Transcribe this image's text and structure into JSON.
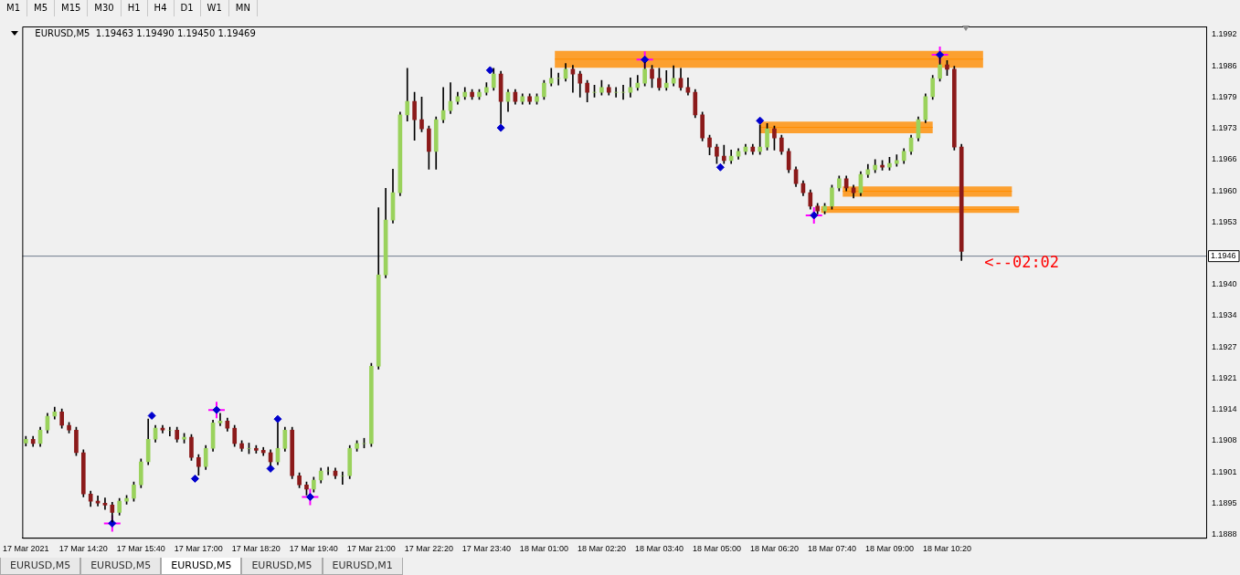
{
  "chart_data": {
    "type": "candlestick",
    "title": "EURUSD,M5  1.19463 1.19490 1.19450 1.19469",
    "colors": [
      "#9ad25c",
      "#8b1a1a",
      "#9ad25c",
      "#9ad25c",
      "#9ad25c",
      "#8b1a1a",
      "#8b1a1a",
      "#8b1a1a",
      "#8b1a1a",
      "#8b1a1a",
      "#8b1a1a",
      "#8b1a1a",
      "#8b1a1a",
      "#9ad25c",
      "#9ad25c",
      "#9ad25c",
      "#9ad25c",
      "#9ad25c",
      "#9ad25c",
      "#8b1a1a",
      "#9ad25c",
      "#8b1a1a",
      "#9ad25c",
      "#8b1a1a",
      "#8b1a1a",
      "#9ad25c",
      "#9ad25c",
      "#9ad25c",
      "#8b1a1a",
      "#8b1a1a",
      "#8b1a1a",
      "#9ad25c",
      "#8b1a1a",
      "#8b1a1a",
      "#8b1a1a",
      "#9ad25c",
      "#9ad25c",
      "#8b1a1a",
      "#8b1a1a",
      "#8b1a1a",
      "#9ad25c",
      "#9ad25c",
      "#9ad25c",
      "#8b1a1a",
      "#9ad25c",
      "#9ad25c",
      "#9ad25c",
      "#9ad25c",
      "#9ad25c",
      "#9ad25c",
      "#9ad25c",
      "#9ad25c",
      "#9ad25c",
      "#9ad25c",
      "#8b1a1a",
      "#8b1a1a",
      "#8b1a1a",
      "#9ad25c",
      "#9ad25c",
      "#9ad25c",
      "#9ad25c",
      "#9ad25c",
      "#8b1a1a",
      "#9ad25c",
      "#9ad25c",
      "#9ad25c",
      "#8b1a1a",
      "#9ad25c",
      "#8b1a1a",
      "#9ad25c",
      "#8b1a1a",
      "#9ad25c",
      "#9ad25c",
      "#9ad25c",
      "#9ad25c",
      "#9ad25c",
      "#8b1a1a",
      "#8b1a1a",
      "#8b1a1a",
      "#9ad25c",
      "#9ad25c",
      "#8b1a1a",
      "#9ad25c",
      "#9ad25c",
      "#9ad25c",
      "#9ad25c",
      "#9ad25c",
      "#8b1a1a",
      "#8b1a1a",
      "#9ad25c",
      "#9ad25c",
      "#8b1a1a",
      "#8b1a1a",
      "#8b1a1a",
      "#8b1a1a",
      "#8b1a1a",
      "#8b1a1a",
      "#8b1a1a",
      "#9ad25c",
      "#9ad25c",
      "#9ad25c",
      "#8b1a1a",
      "#9ad25c",
      "#9ad25c",
      "#8b1a1a",
      "#8b1a1a",
      "#8b1a1a",
      "#8b1a1a",
      "#8b1a1a",
      "#8b1a1a",
      "#8b1a1a",
      "#9ad25c",
      "#9ad25c",
      "#9ad25c",
      "#8b1a1a",
      "#8b1a1a",
      "#9ad25c",
      "#9ad25c",
      "#9ad25c",
      "#8b1a1a",
      "#9ad25c",
      "#9ad25c",
      "#9ad25c",
      "#9ad25c",
      "#9ad25c",
      "#9ad25c",
      "#9ad25c",
      "#9ad25c",
      "#8b1a1a",
      "#8b1a1a",
      "#8b1a1a"
    ],
    "x": [
      "2021-03-17T13:00",
      "2021-03-17T13:10",
      "2021-03-17T13:20",
      "2021-03-17T13:30",
      "2021-03-17T13:40",
      "2021-03-17T13:50",
      "2021-03-17T14:00",
      "2021-03-17T14:10",
      "2021-03-17T14:20",
      "2021-03-17T14:30",
      "2021-03-17T14:40",
      "2021-03-17T14:50",
      "2021-03-17T15:00",
      "2021-03-17T15:10",
      "2021-03-17T15:20",
      "2021-03-17T15:30",
      "2021-03-17T15:40",
      "2021-03-17T15:50",
      "2021-03-17T16:00",
      "2021-03-17T16:10",
      "2021-03-17T16:20",
      "2021-03-17T16:30",
      "2021-03-17T16:40",
      "2021-03-17T16:50",
      "2021-03-17T17:00",
      "2021-03-17T17:10",
      "2021-03-17T17:20",
      "2021-03-17T17:30",
      "2021-03-17T17:40",
      "2021-03-17T17:50",
      "2021-03-17T18:00",
      "2021-03-17T18:10",
      "2021-03-17T18:20",
      "2021-03-17T18:30",
      "2021-03-17T18:40",
      "2021-03-17T18:50",
      "2021-03-17T19:00",
      "2021-03-17T19:10",
      "2021-03-17T19:20",
      "2021-03-17T19:30",
      "2021-03-17T19:40",
      "2021-03-17T19:50",
      "2021-03-17T20:00",
      "2021-03-17T20:10",
      "2021-03-17T20:20",
      "2021-03-17T20:30",
      "2021-03-17T20:40",
      "2021-03-17T20:50",
      "2021-03-17T21:00",
      "2021-03-17T21:10",
      "2021-03-17T21:20",
      "2021-03-17T21:30",
      "2021-03-17T21:40",
      "2021-03-17T21:50",
      "2021-03-17T22:00",
      "2021-03-17T22:10",
      "2021-03-17T22:20",
      "2021-03-17T22:30",
      "2021-03-17T22:40",
      "2021-03-17T22:50",
      "2021-03-17T23:00",
      "2021-03-17T23:10",
      "2021-03-17T23:20",
      "2021-03-17T23:30",
      "2021-03-17T23:40",
      "2021-03-17T23:50",
      "2021-03-18T00:00",
      "2021-03-18T00:10",
      "2021-03-18T00:20",
      "2021-03-18T00:30",
      "2021-03-18T00:40",
      "2021-03-18T00:50",
      "2021-03-18T01:00",
      "2021-03-18T01:10",
      "2021-03-18T01:20",
      "2021-03-18T01:30",
      "2021-03-18T01:40",
      "2021-03-18T01:50",
      "2021-03-18T02:00",
      "2021-03-18T02:10",
      "2021-03-18T02:20",
      "2021-03-18T02:30",
      "2021-03-18T02:40",
      "2021-03-18T02:50",
      "2021-03-18T03:00",
      "2021-03-18T03:10",
      "2021-03-18T03:20",
      "2021-03-18T03:30",
      "2021-03-18T03:40",
      "2021-03-18T03:50",
      "2021-03-18T04:00",
      "2021-03-18T04:10",
      "2021-03-18T04:20",
      "2021-03-18T04:30",
      "2021-03-18T04:40",
      "2021-03-18T04:50",
      "2021-03-18T05:00",
      "2021-03-18T05:10",
      "2021-03-18T05:20",
      "2021-03-18T05:30",
      "2021-03-18T05:40",
      "2021-03-18T05:50",
      "2021-03-18T06:00",
      "2021-03-18T06:10",
      "2021-03-18T06:20",
      "2021-03-18T06:30",
      "2021-03-18T06:40",
      "2021-03-18T06:50",
      "2021-03-18T07:00",
      "2021-03-18T07:10",
      "2021-03-18T07:20",
      "2021-03-18T07:30",
      "2021-03-18T07:40",
      "2021-03-18T07:50",
      "2021-03-18T08:00",
      "2021-03-18T08:10",
      "2021-03-18T08:20",
      "2021-03-18T08:30",
      "2021-03-18T08:40",
      "2021-03-18T08:50",
      "2021-03-18T09:00",
      "2021-03-18T09:10",
      "2021-03-18T09:20",
      "2021-03-18T09:30",
      "2021-03-18T09:40",
      "2021-03-18T09:50",
      "2021-03-18T10:00",
      "2021-03-18T10:10",
      "2021-03-18T10:20",
      "2021-03-18T10:30",
      "2021-03-18T10:40"
    ],
    "ohlc": [
      [
        1.1907,
        1.19084,
        1.19064,
        1.19078
      ],
      [
        1.19078,
        1.19084,
        1.19063,
        1.19069
      ],
      [
        1.19069,
        1.19103,
        1.19063,
        1.19097
      ],
      [
        1.19097,
        1.19132,
        1.19091,
        1.19126
      ],
      [
        1.19126,
        1.19145,
        1.1912,
        1.19135
      ],
      [
        1.19135,
        1.19141,
        1.19101,
        1.19107
      ],
      [
        1.19107,
        1.19113,
        1.19091,
        1.19097
      ],
      [
        1.19097,
        1.19103,
        1.19044,
        1.1905
      ],
      [
        1.1905,
        1.19056,
        1.18958,
        1.18964
      ],
      [
        1.18964,
        1.1897,
        1.18938,
        1.18949
      ],
      [
        1.18949,
        1.1896,
        1.18939,
        1.18945
      ],
      [
        1.18945,
        1.18956,
        1.18932,
        1.18941
      ],
      [
        1.18941,
        1.18947,
        1.18906,
        1.18926
      ],
      [
        1.18926,
        1.18955,
        1.1892,
        1.18949
      ],
      [
        1.18949,
        1.18961,
        1.18943,
        1.18955
      ],
      [
        1.18955,
        1.18989,
        1.18949,
        1.18983
      ],
      [
        1.18983,
        1.19037,
        1.18977,
        1.19031
      ],
      [
        1.19031,
        1.1912,
        1.19025,
        1.19078
      ],
      [
        1.19078,
        1.19107,
        1.19072,
        1.19101
      ],
      [
        1.19101,
        1.19107,
        1.19091,
        1.19097
      ],
      [
        1.19097,
        1.19103,
        1.19085,
        1.19097
      ],
      [
        1.19097,
        1.19103,
        1.19072,
        1.19078
      ],
      [
        1.19078,
        1.1909,
        1.1907,
        1.19082
      ],
      [
        1.19082,
        1.19088,
        1.19034,
        1.1904
      ],
      [
        1.1904,
        1.19046,
        1.19003,
        1.19021
      ],
      [
        1.19021,
        1.19065,
        1.19015,
        1.19059
      ],
      [
        1.19059,
        1.19118,
        1.19053,
        1.19112
      ],
      [
        1.19112,
        1.19132,
        1.19106,
        1.19116
      ],
      [
        1.19116,
        1.19122,
        1.19095,
        1.19101
      ],
      [
        1.19101,
        1.19107,
        1.19063,
        1.19069
      ],
      [
        1.19069,
        1.19075,
        1.19053,
        1.19059
      ],
      [
        1.19059,
        1.1907,
        1.19048,
        1.19059
      ],
      [
        1.19059,
        1.19065,
        1.19049,
        1.19055
      ],
      [
        1.19055,
        1.19061,
        1.19044,
        1.1905
      ],
      [
        1.1905,
        1.19056,
        1.19023,
        1.19031
      ],
      [
        1.19031,
        1.19112,
        1.19025,
        1.19059
      ],
      [
        1.19059,
        1.19103,
        1.19053,
        1.19097
      ],
      [
        1.19097,
        1.19103,
        1.18996,
        1.19002
      ],
      [
        1.19002,
        1.19008,
        1.18977,
        1.18983
      ],
      [
        1.18983,
        1.18989,
        1.18962,
        1.18974
      ],
      [
        1.18974,
        1.18999,
        1.18968,
        1.18993
      ],
      [
        1.18993,
        1.19018,
        1.18987,
        1.19012
      ],
      [
        1.19012,
        1.1902,
        1.19004,
        1.19012
      ],
      [
        1.19012,
        1.19018,
        1.18996,
        1.19002
      ],
      [
        1.19002,
        1.1901,
        1.18984,
        1.19002
      ],
      [
        1.19002,
        1.19065,
        1.18996,
        1.19059
      ],
      [
        1.19059,
        1.19075,
        1.19053,
        1.19069
      ],
      [
        1.19069,
        1.1908,
        1.1906,
        1.19069
      ],
      [
        1.19069,
        1.19236,
        1.19063,
        1.1923
      ],
      [
        1.1923,
        1.1956,
        1.19224,
        1.1942
      ],
      [
        1.1942,
        1.196,
        1.19414,
        1.19534
      ],
      [
        1.19534,
        1.1964,
        1.19528,
        1.19591
      ],
      [
        1.19591,
        1.19759,
        1.19585,
        1.19753
      ],
      [
        1.19753,
        1.1985,
        1.1974,
        1.19781
      ],
      [
        1.19781,
        1.198,
        1.197,
        1.19743
      ],
      [
        1.19743,
        1.1979,
        1.19718,
        1.19724
      ],
      [
        1.19724,
        1.1973,
        1.1964,
        1.19677
      ],
      [
        1.19677,
        1.19749,
        1.1964,
        1.19743
      ],
      [
        1.19743,
        1.1981,
        1.19737,
        1.19762
      ],
      [
        1.19762,
        1.1982,
        1.19756,
        1.19781
      ],
      [
        1.19781,
        1.198,
        1.19775,
        1.19791
      ],
      [
        1.19791,
        1.1981,
        1.19785,
        1.198
      ],
      [
        1.198,
        1.19806,
        1.19785,
        1.19791
      ],
      [
        1.19791,
        1.19806,
        1.19785,
        1.198
      ],
      [
        1.198,
        1.1982,
        1.19794,
        1.1981
      ],
      [
        1.1981,
        1.1985,
        1.19804,
        1.19838
      ],
      [
        1.19838,
        1.19844,
        1.19735,
        1.19781
      ],
      [
        1.19781,
        1.19806,
        1.1976,
        1.198
      ],
      [
        1.198,
        1.19806,
        1.19775,
        1.19781
      ],
      [
        1.19781,
        1.19797,
        1.19775,
        1.19791
      ],
      [
        1.19791,
        1.19797,
        1.19775,
        1.19781
      ],
      [
        1.19781,
        1.19797,
        1.19775,
        1.19791
      ],
      [
        1.19791,
        1.19825,
        1.19785,
        1.19819
      ],
      [
        1.19819,
        1.1985,
        1.19813,
        1.19829
      ],
      [
        1.19829,
        1.1984,
        1.19815,
        1.19829
      ],
      [
        1.19829,
        1.1986,
        1.19823,
        1.19848
      ],
      [
        1.19848,
        1.19856,
        1.198,
        1.19838
      ],
      [
        1.19838,
        1.19844,
        1.1979,
        1.19819
      ],
      [
        1.19819,
        1.19825,
        1.1978,
        1.198
      ],
      [
        1.198,
        1.19815,
        1.1979,
        1.198
      ],
      [
        1.198,
        1.19825,
        1.19794,
        1.1981
      ],
      [
        1.1981,
        1.19816,
        1.19794,
        1.198
      ],
      [
        1.198,
        1.1981,
        1.1979,
        1.198
      ],
      [
        1.198,
        1.19815,
        1.19785,
        1.198
      ],
      [
        1.198,
        1.1983,
        1.1979,
        1.1981
      ],
      [
        1.1981,
        1.19835,
        1.19804,
        1.19819
      ],
      [
        1.19819,
        1.19862,
        1.19813,
        1.19848
      ],
      [
        1.19848,
        1.19856,
        1.1981,
        1.19829
      ],
      [
        1.19829,
        1.1985,
        1.19804,
        1.1981
      ],
      [
        1.1981,
        1.19845,
        1.19804,
        1.19819
      ],
      [
        1.19819,
        1.19855,
        1.19813,
        1.19829
      ],
      [
        1.19829,
        1.1985,
        1.19804,
        1.1981
      ],
      [
        1.1981,
        1.1983,
        1.19794,
        1.198
      ],
      [
        1.198,
        1.19806,
        1.19747,
        1.19753
      ],
      [
        1.19753,
        1.19759,
        1.19699,
        1.19705
      ],
      [
        1.19705,
        1.19711,
        1.1967,
        1.19686
      ],
      [
        1.19686,
        1.19692,
        1.19652,
        1.19667
      ],
      [
        1.19667,
        1.1969,
        1.19652,
        1.19658
      ],
      [
        1.19658,
        1.1968,
        1.19652,
        1.19667
      ],
      [
        1.19667,
        1.19683,
        1.19661,
        1.19677
      ],
      [
        1.19677,
        1.19692,
        1.19671,
        1.19686
      ],
      [
        1.19686,
        1.19692,
        1.19671,
        1.19677
      ],
      [
        1.19677,
        1.19732,
        1.19671,
        1.19686
      ],
      [
        1.19686,
        1.19735,
        1.1968,
        1.19724
      ],
      [
        1.19724,
        1.1973,
        1.1968,
        1.19705
      ],
      [
        1.19705,
        1.19711,
        1.19671,
        1.19677
      ],
      [
        1.19677,
        1.19683,
        1.19633,
        1.19639
      ],
      [
        1.19639,
        1.19645,
        1.19604,
        1.1961
      ],
      [
        1.1961,
        1.19616,
        1.19585,
        1.19591
      ],
      [
        1.19591,
        1.19597,
        1.19557,
        1.19563
      ],
      [
        1.19563,
        1.19569,
        1.19547,
        1.19553
      ],
      [
        1.19553,
        1.19569,
        1.19547,
        1.19563
      ],
      [
        1.19563,
        1.19607,
        1.19557,
        1.19601
      ],
      [
        1.19601,
        1.19626,
        1.19595,
        1.1962
      ],
      [
        1.1962,
        1.19626,
        1.19595,
        1.19601
      ],
      [
        1.19601,
        1.19607,
        1.1958,
        1.19591
      ],
      [
        1.19591,
        1.19635,
        1.19585,
        1.19629
      ],
      [
        1.19629,
        1.1965,
        1.19623,
        1.19639
      ],
      [
        1.19639,
        1.1966,
        1.19633,
        1.19648
      ],
      [
        1.19648,
        1.19658,
        1.19638,
        1.19644
      ],
      [
        1.19644,
        1.19665,
        1.19638,
        1.19652
      ],
      [
        1.19652,
        1.1967,
        1.19646,
        1.19658
      ],
      [
        1.19658,
        1.19683,
        1.19652,
        1.19677
      ],
      [
        1.19677,
        1.19711,
        1.19671,
        1.19705
      ],
      [
        1.19705,
        1.19749,
        1.19699,
        1.19743
      ],
      [
        1.19743,
        1.19797,
        1.19737,
        1.19791
      ],
      [
        1.19791,
        1.19835,
        1.19785,
        1.19829
      ],
      [
        1.19829,
        1.19872,
        1.19823,
        1.19857
      ],
      [
        1.19857,
        1.19866,
        1.19835,
        1.19848
      ],
      [
        1.19848,
        1.19854,
        1.1968,
        1.19686
      ],
      [
        1.19686,
        1.19692,
        1.1945,
        1.19469
      ]
    ],
    "series": [
      {
        "type": "line",
        "color": "#ff8c00",
        "x": [
          "2021-03-18T01:15",
          "2021-03-18T11:10"
        ],
        "values": [
          1.19869,
          1.19869
        ],
        "lower": [
          1.19851,
          1.19851
        ],
        "upper": [
          1.19886,
          1.19886
        ]
      },
      {
        "type": "line",
        "color": "#ff8c00",
        "x": [
          "2021-03-18T06:00",
          "2021-03-18T10:00"
        ],
        "values": [
          1.19727,
          1.19727
        ],
        "lower": [
          1.19715,
          1.19715
        ],
        "upper": [
          1.19739,
          1.19739
        ]
      },
      {
        "type": "line",
        "color": "#ff8c00",
        "x": [
          "2021-03-18T07:55",
          "2021-03-18T11:50"
        ],
        "values": [
          1.19594,
          1.19594
        ],
        "lower": [
          1.19583,
          1.19583
        ],
        "upper": [
          1.19604,
          1.19604
        ]
      },
      {
        "type": "line",
        "color": "#ff8c00",
        "x": [
          "2021-03-18T07:25",
          "2021-03-18T12:00"
        ],
        "values": [
          1.19556,
          1.19556
        ],
        "lower": [
          1.19549,
          1.19549
        ],
        "upper": [
          1.19563,
          1.19563
        ]
      },
      {
        "type": "scatter",
        "marker": "cross",
        "color": "#ff00ff",
        "x": [
          "2021-03-17T15:00",
          "2021-03-17T17:25",
          "2021-03-17T19:35",
          "2021-03-18T03:20",
          "2021-03-18T07:15",
          "2021-03-18T10:10"
        ],
        "values": [
          1.18903,
          1.19139,
          1.18958,
          1.19868,
          1.19544,
          1.19878
        ]
      },
      {
        "type": "scatter",
        "marker": "diamond",
        "color": "#0000cd",
        "x": [
          "2021-03-17T15:00",
          "2021-03-17T15:55",
          "2021-03-17T16:55",
          "2021-03-17T17:25",
          "2021-03-17T18:40",
          "2021-03-17T18:50",
          "2021-03-17T19:35",
          "2021-03-17T23:45",
          "2021-03-18T00:00",
          "2021-03-18T03:20",
          "2021-03-18T05:05",
          "2021-03-18T06:00",
          "2021-03-18T07:15",
          "2021-03-18T10:10"
        ],
        "values": [
          1.18903,
          1.19127,
          1.18996,
          1.19139,
          1.19017,
          1.1912,
          1.18958,
          1.19846,
          1.19726,
          1.19868,
          1.19644,
          1.19741,
          1.19544,
          1.19878
        ]
      }
    ],
    "xlim": [
      "2021-03-17T12:55",
      "2021-03-18T16:20"
    ],
    "xticks": [
      {
        "value": "2021-03-17T13:00",
        "label": "17 Mar 2021"
      },
      {
        "value": "2021-03-17T14:20",
        "label": "17 Mar 14:20"
      },
      {
        "value": "2021-03-17T15:40",
        "label": "17 Mar 15:40"
      },
      {
        "value": "2021-03-17T17:00",
        "label": "17 Mar 17:00"
      },
      {
        "value": "2021-03-17T18:20",
        "label": "17 Mar 18:20"
      },
      {
        "value": "2021-03-17T19:40",
        "label": "17 Mar 19:40"
      },
      {
        "value": "2021-03-17T21:00",
        "label": "17 Mar 21:00"
      },
      {
        "value": "2021-03-17T22:20",
        "label": "17 Mar 22:20"
      },
      {
        "value": "2021-03-17T23:40",
        "label": "17 Mar 23:40"
      },
      {
        "value": "2021-03-18T01:00",
        "label": "18 Mar 01:00"
      },
      {
        "value": "2021-03-18T02:20",
        "label": "18 Mar 02:20"
      },
      {
        "value": "2021-03-18T03:40",
        "label": "18 Mar 03:40"
      },
      {
        "value": "2021-03-18T05:00",
        "label": "18 Mar 05:00"
      },
      {
        "value": "2021-03-18T06:20",
        "label": "18 Mar 06:20"
      },
      {
        "value": "2021-03-18T07:40",
        "label": "18 Mar 07:40"
      },
      {
        "value": "2021-03-18T09:00",
        "label": "18 Mar 09:00"
      },
      {
        "value": "2021-03-18T10:20",
        "label": "18 Mar 10:20"
      }
    ],
    "ylim": [
      1.18873,
      1.19937
    ],
    "yticks": [
      {
        "value": 1.1888,
        "label": "1.1888"
      },
      {
        "value": 1.18945,
        "label": "1.1895"
      },
      {
        "value": 1.1901,
        "label": "1.1901"
      },
      {
        "value": 1.19075,
        "label": "1.1908"
      },
      {
        "value": 1.1914,
        "label": "1.1914"
      },
      {
        "value": 1.19205,
        "label": "1.1921"
      },
      {
        "value": 1.1927,
        "label": "1.1927"
      },
      {
        "value": 1.19335,
        "label": "1.1934"
      },
      {
        "value": 1.194,
        "label": "1.1940"
      },
      {
        "value": 1.1953,
        "label": "1.1953"
      },
      {
        "value": 1.19595,
        "label": "1.1960"
      },
      {
        "value": 1.1966,
        "label": "1.1966"
      },
      {
        "value": 1.19725,
        "label": "1.1973"
      },
      {
        "value": 1.1979,
        "label": "1.1979"
      },
      {
        "value": 1.19855,
        "label": "1.1986"
      },
      {
        "value": 1.1992,
        "label": "1.1992"
      }
    ],
    "ref_lines": [
      {
        "axis": "y",
        "value": 1.1946,
        "label": "1.1946",
        "color": "#6e7b8b"
      }
    ],
    "annotations": [
      "<--02:02",
      "M1",
      "M5",
      "M15",
      "M30",
      "H1",
      "H4",
      "D1",
      "W1",
      "MN",
      "EURUSD,M5",
      "EURUSD,M5",
      "EURUSD,M5",
      "EURUSD,M5",
      "EURUSD,M1"
    ]
  }
}
